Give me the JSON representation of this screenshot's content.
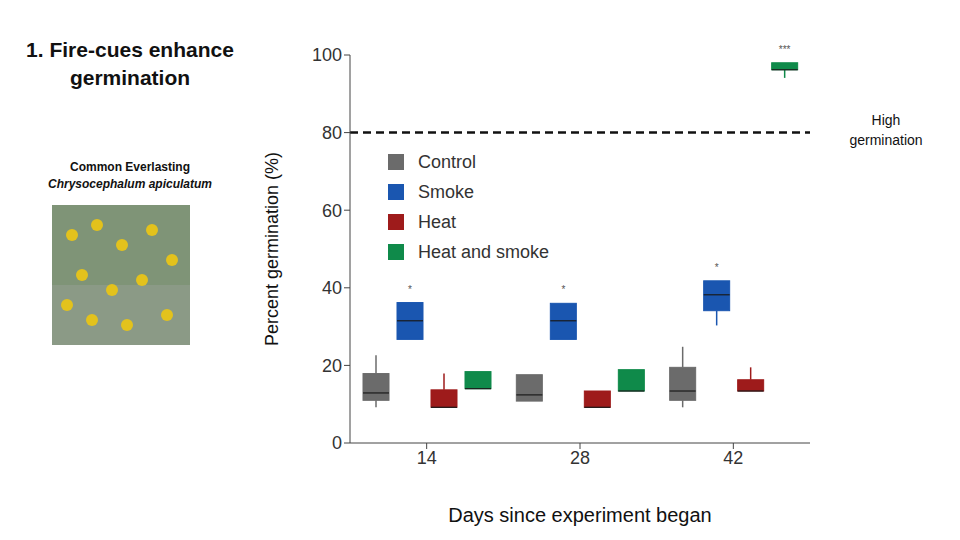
{
  "chart_data": {
    "type": "box",
    "title": "1. Fire-cues enhance germination",
    "subtitle": "Common Everlasting",
    "species": "Chrysocephalum apiculatum",
    "x_label": "Days since experiment began",
    "y_label": "Percent germination (%)",
    "categories": [
      14,
      28,
      42
    ],
    "ylim": [
      0,
      100
    ],
    "yticks": [
      0,
      20,
      40,
      60,
      80,
      100
    ],
    "grid": false,
    "legend": "upper left",
    "reference_line": {
      "value": 80,
      "label": "High germination"
    },
    "series": [
      {
        "name": "Control",
        "color": "#6b6b6b",
        "min": [
          9.2,
          10.8,
          9.2
        ],
        "q1": [
          11,
          10.8,
          11
        ],
        "median": [
          12.9,
          12.4,
          13.4
        ],
        "q3": [
          17.9,
          17.6,
          19.5
        ],
        "max": [
          22.6,
          17.6,
          24.8
        ],
        "significance": [
          null,
          null,
          null
        ]
      },
      {
        "name": "Smoke",
        "color": "#1a56b0",
        "min": [
          26.7,
          26.7,
          30.3
        ],
        "q1": [
          26.7,
          26.7,
          34.1
        ],
        "median": [
          31.5,
          31.5,
          38.2
        ],
        "q3": [
          36.2,
          36,
          41.8
        ],
        "max": [
          36.2,
          36,
          41.8
        ],
        "significance": [
          "*",
          "*",
          "*"
        ]
      },
      {
        "name": "Heat",
        "color": "#9e1b1b",
        "min": [
          9.2,
          9.2,
          13.4
        ],
        "q1": [
          9.2,
          9.2,
          13.4
        ],
        "median": [
          9.2,
          9.2,
          13.4
        ],
        "q3": [
          13.7,
          13.4,
          16.3
        ],
        "max": [
          17.9,
          13.4,
          19.5
        ],
        "significance": [
          null,
          null,
          null
        ]
      },
      {
        "name": "Heat and smoke",
        "color": "#0f8a4a",
        "min": [
          14,
          13.4,
          94.1
        ],
        "q1": [
          14,
          13.4,
          96.2
        ],
        "median": [
          14,
          13.4,
          96.2
        ],
        "q3": [
          18.4,
          18.9,
          98
        ],
        "max": [
          18.4,
          18.9,
          98
        ],
        "significance": [
          null,
          null,
          "***"
        ]
      }
    ]
  }
}
